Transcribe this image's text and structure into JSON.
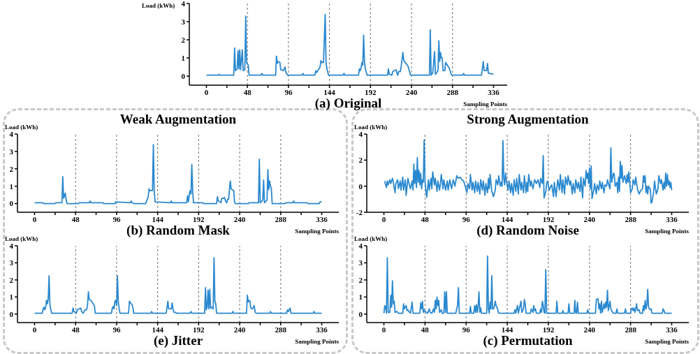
{
  "chart_data": [
    {
      "type": "line",
      "title": "(a) Original",
      "xlabel": "Sampling Points",
      "ylabel": "Load (kWh)",
      "xlim": [
        -20,
        352
      ],
      "ylim": [
        -0.5,
        4
      ],
      "xticks": [
        0,
        {
          "value": 24,
          "label": null
        },
        48,
        {
          "value": 72,
          "label": null
        },
        96,
        {
          "value": 120,
          "label": null
        },
        144,
        {
          "value": 168,
          "label": null
        },
        192,
        {
          "value": 216,
          "label": null
        },
        240,
        {
          "value": 264,
          "label": null
        },
        288,
        {
          "value": 312,
          "label": null
        },
        336
      ],
      "yticks": [
        0,
        1,
        2,
        3,
        4
      ],
      "ref_lines": [
        {
          "axis": "x",
          "value": 48,
          "color": "#707070",
          "line_style": "dashed"
        },
        {
          "axis": "x",
          "value": 96,
          "color": "#707070",
          "line_style": "dashed"
        },
        {
          "axis": "x",
          "value": 144,
          "color": "#707070",
          "line_style": "dashed"
        },
        {
          "axis": "x",
          "value": 192,
          "color": "#707070",
          "line_style": "dashed"
        },
        {
          "axis": "x",
          "value": 240,
          "color": "#707070",
          "line_style": "dashed"
        },
        {
          "axis": "x",
          "value": 288,
          "color": "#707070",
          "line_style": "dashed"
        }
      ],
      "series": [
        {
          "color": "#2a88cf",
          "x": [
            0,
            14,
            15,
            16,
            32,
            33,
            34,
            36,
            37,
            38,
            39,
            40,
            42,
            43,
            45,
            46,
            47,
            49,
            50,
            64,
            65,
            66,
            81,
            82,
            83,
            84,
            86,
            87,
            90,
            92,
            93,
            95,
            112,
            113,
            114,
            127,
            128,
            129,
            131,
            133,
            134,
            135,
            137,
            139,
            140,
            141,
            143,
            160,
            161,
            162,
            178,
            179,
            180,
            181,
            182,
            183,
            184,
            185,
            186,
            188,
            212,
            213,
            214,
            217,
            218,
            220,
            222,
            223,
            224,
            225,
            227,
            228,
            230,
            231,
            236,
            238,
            239,
            261,
            262,
            263,
            265,
            267,
            268,
            271,
            272,
            273,
            274,
            275,
            276,
            277,
            279,
            280,
            282,
            284,
            287,
            300,
            301,
            302,
            322,
            324,
            325,
            328,
            329,
            330,
            331,
            336
          ],
          "values": [
            0.05,
            0.05,
            0.1,
            0.05,
            0.05,
            1.55,
            0.3,
            0.4,
            1.4,
            0.4,
            1.45,
            0.35,
            1.45,
            0.3,
            0.35,
            3.3,
            0.75,
            0.6,
            0.05,
            0.05,
            0.15,
            0.05,
            0.05,
            1.1,
            0.7,
            0.8,
            0.75,
            0.35,
            0.3,
            0.5,
            0.2,
            0.05,
            0.05,
            0.15,
            0.05,
            0.05,
            0.3,
            0.2,
            0.35,
            0.5,
            0.85,
            0.75,
            0.75,
            3.4,
            0.75,
            0.4,
            0.05,
            0.05,
            0.15,
            0.05,
            0.05,
            0.4,
            0.3,
            0.45,
            0.75,
            0.6,
            2.25,
            0.8,
            0.4,
            0.05,
            0.05,
            0.4,
            0.1,
            0.05,
            0.25,
            0.3,
            0.35,
            0.15,
            0.05,
            0.25,
            0.25,
            0.55,
            1.3,
            0.85,
            0.55,
            0.2,
            0.05,
            0.05,
            2.55,
            0.05,
            0.2,
            1.35,
            0.1,
            0.3,
            1.95,
            0.8,
            1.3,
            1.0,
            1.0,
            0.3,
            0.3,
            0.75,
            0.6,
            0.45,
            0.05,
            0.05,
            0.15,
            0.05,
            0.05,
            0.8,
            0.3,
            0.3,
            0.7,
            0.15,
            0.15,
            0.1
          ]
        }
      ]
    },
    {
      "type": "line",
      "title": "(b) Random Mask",
      "xlabel": "Sampling Points",
      "ylabel": "Load (kWh)",
      "annotations": [
        "Weak Augmentation"
      ],
      "xlim": [
        -20,
        356
      ],
      "ylim": [
        -0.5,
        4
      ],
      "xticks": [
        0,
        {
          "value": 24,
          "label": null
        },
        48,
        {
          "value": 72,
          "label": null
        },
        96,
        {
          "value": 120,
          "label": null
        },
        144,
        {
          "value": 168,
          "label": null
        },
        192,
        {
          "value": 216,
          "label": null
        },
        240,
        {
          "value": 264,
          "label": null
        },
        288,
        {
          "value": 312,
          "label": null
        },
        336
      ],
      "yticks": [
        0,
        1,
        2,
        3,
        4
      ],
      "ref_lines": [
        {
          "axis": "x",
          "value": 48,
          "color": "#707070",
          "line_style": "dashed"
        },
        {
          "axis": "x",
          "value": 96,
          "color": "#707070",
          "line_style": "dashed"
        },
        {
          "axis": "x",
          "value": 144,
          "color": "#707070",
          "line_style": "dashed"
        },
        {
          "axis": "x",
          "value": 192,
          "color": "#707070",
          "line_style": "dashed"
        },
        {
          "axis": "x",
          "value": 240,
          "color": "#707070",
          "line_style": "dashed"
        },
        {
          "axis": "x",
          "value": 288,
          "color": "#707070",
          "line_style": "dashed"
        }
      ],
      "series": [
        {
          "color": "#2a88cf",
          "x": [
            0,
            10,
            11,
            24,
            25,
            32,
            33,
            34,
            36,
            37,
            38,
            48,
            51,
            52,
            64,
            65,
            66,
            80,
            81,
            94,
            95,
            112,
            113,
            114,
            116,
            130,
            133,
            134,
            135,
            138,
            139,
            140,
            141,
            159,
            160,
            161,
            178,
            179,
            180,
            181,
            182,
            183,
            184,
            185,
            186,
            197,
            198,
            213,
            214,
            215,
            217,
            218,
            219,
            221,
            222,
            224,
            225,
            226,
            227,
            229,
            230,
            233,
            234,
            235,
            250,
            251,
            262,
            263,
            264,
            267,
            268,
            269,
            272,
            273,
            274,
            275,
            276,
            277,
            278,
            293,
            294,
            302,
            303,
            304,
            319,
            320,
            333,
            334,
            336
          ],
          "values": [
            0.05,
            0.05,
            0,
            0,
            0.05,
            0.05,
            1.55,
            0.3,
            0.6,
            0.2,
            0,
            0,
            0,
            0.05,
            0.05,
            0.15,
            0.05,
            0.05,
            0,
            0,
            0.1,
            0.05,
            0.15,
            0.05,
            0,
            0,
            0.4,
            0.85,
            0.75,
            0.75,
            3.4,
            0.75,
            0.1,
            0.05,
            0.15,
            0.05,
            0.05,
            0.45,
            0.1,
            0.5,
            0.75,
            0.55,
            2.25,
            0.7,
            0.05,
            0.05,
            0,
            0,
            0.4,
            0.15,
            0.1,
            0.05,
            0.3,
            0.3,
            0.35,
            0.1,
            0.05,
            0.25,
            0.25,
            1.3,
            0.85,
            0.75,
            0.1,
            0,
            0,
            0.05,
            0.05,
            2.55,
            0.05,
            0.2,
            1.35,
            0.05,
            0.2,
            1.95,
            0.8,
            1.3,
            1.0,
            0.9,
            0,
            0,
            0.05,
            0.05,
            0.15,
            0.05,
            0.05,
            0,
            0,
            0.1,
            0.1
          ]
        }
      ]
    },
    {
      "type": "line",
      "title": "(d) Random Noise",
      "xlabel": "Sampling Points",
      "ylabel": "Load (kWh)",
      "annotations": [
        "Strong Augmentation"
      ],
      "xlim": [
        -20,
        356
      ],
      "ylim": [
        -2,
        4
      ],
      "xticks": [
        0,
        {
          "value": 24,
          "label": null
        },
        48,
        {
          "value": 72,
          "label": null
        },
        96,
        {
          "value": 120,
          "label": null
        },
        144,
        {
          "value": 168,
          "label": null
        },
        192,
        {
          "value": 216,
          "label": null
        },
        240,
        {
          "value": 264,
          "label": null
        },
        288,
        {
          "value": 312,
          "label": null
        },
        336
      ],
      "yticks": [
        -2,
        0,
        2,
        4
      ],
      "ref_lines": [
        {
          "axis": "x",
          "value": 48,
          "color": "#707070",
          "line_style": "dashed"
        },
        {
          "axis": "x",
          "value": 96,
          "color": "#707070",
          "line_style": "dashed"
        },
        {
          "axis": "x",
          "value": 144,
          "color": "#707070",
          "line_style": "dashed"
        },
        {
          "axis": "x",
          "value": 192,
          "color": "#707070",
          "line_style": "dashed"
        },
        {
          "axis": "x",
          "value": 240,
          "color": "#707070",
          "line_style": "dashed"
        },
        {
          "axis": "x",
          "value": 288,
          "color": "#707070",
          "line_style": "dashed"
        }
      ],
      "series": [
        {
          "color": "#2a88cf",
          "x": [
            1,
            2,
            3,
            4,
            5,
            7,
            8,
            10,
            11,
            13,
            14,
            16,
            17,
            19,
            20,
            22,
            23,
            25,
            26,
            28,
            29,
            31,
            33,
            34,
            35,
            36,
            37,
            38,
            39,
            40,
            41,
            42,
            43,
            44,
            45,
            46,
            47,
            48,
            49,
            50,
            52,
            53,
            55,
            56,
            57,
            59,
            60,
            62,
            63,
            65,
            66,
            67,
            69,
            70,
            72,
            74,
            75,
            77,
            79,
            81,
            83,
            85,
            87,
            89,
            91,
            93,
            95,
            97,
            98,
            100,
            101,
            103,
            104,
            106,
            107,
            109,
            110,
            112,
            113,
            115,
            116,
            118,
            119,
            121,
            122,
            123,
            124,
            126,
            128,
            130,
            131,
            133,
            134,
            136,
            137,
            138,
            139,
            140,
            141,
            142,
            143,
            145,
            146,
            148,
            149,
            151,
            152,
            154,
            155,
            157,
            158,
            160,
            161,
            163,
            164,
            166,
            167,
            168,
            169,
            171,
            172,
            174,
            176,
            178,
            180,
            182,
            183,
            185,
            186,
            187,
            189,
            190,
            191,
            193,
            195,
            196,
            198,
            199,
            201,
            203,
            205,
            206,
            208,
            209,
            211,
            212,
            214,
            215,
            217,
            218,
            220,
            221,
            223,
            224,
            226,
            227,
            229,
            230,
            232,
            233,
            235,
            236,
            237,
            238,
            239,
            240,
            241,
            242,
            243,
            245,
            246,
            248,
            249,
            251,
            252,
            254,
            255,
            257,
            258,
            260,
            261,
            263,
            264,
            265,
            266,
            268,
            269,
            270,
            272,
            273,
            274,
            275,
            276,
            277,
            278,
            279,
            281,
            283,
            284,
            285,
            286,
            287,
            288,
            290,
            291,
            293,
            294,
            296,
            298,
            300,
            302,
            303,
            304,
            305,
            306,
            307,
            308,
            309,
            311,
            312,
            313,
            315,
            316,
            318,
            320,
            321,
            323,
            324,
            326,
            327,
            328,
            329,
            330,
            331,
            332,
            333,
            334,
            335,
            336
          ],
          "values": [
            0.4,
            0.1,
            -0.1,
            0.4,
            0.1,
            0.5,
            0.2,
            0.6,
            0.3,
            -0.5,
            0.2,
            0.5,
            -0.2,
            0.4,
            -0.3,
            0.7,
            -0.3,
            0.5,
            -0.7,
            0.6,
            0.3,
            -0.2,
            0.4,
            -0.3,
            1.7,
            0.2,
            1.2,
            -0.1,
            2.2,
            0.3,
            1.2,
            0.1,
            1.0,
            -0.2,
            0.5,
            0.3,
            3.55,
            0.4,
            -0.3,
            -0.85,
            0.5,
            -0.3,
            0.6,
            -0.2,
            1.1,
            0.1,
            0.6,
            -0.4,
            0.4,
            -0.3,
            0.2,
            0.9,
            -0.2,
            0.5,
            -0.3,
            0.4,
            -0.3,
            0.5,
            -0.2,
            0.5,
            0.0,
            0.8,
            0.6,
            0.7,
            0.5,
            0.4,
            0.0,
            -0.5,
            0.2,
            -0.2,
            0.9,
            -0.3,
            0.3,
            -0.5,
            0.4,
            -0.4,
            0.3,
            -0.6,
            0.5,
            -0.3,
            0.4,
            -0.7,
            0.2,
            -0.5,
            0.6,
            -0.2,
            0.9,
            -0.4,
            -0.8,
            -0.3,
            0.5,
            0.1,
            0.8,
            0.0,
            0.3,
            0.0,
            3.5,
            0.6,
            0.1,
            1.0,
            0.4,
            -0.3,
            0.4,
            -0.5,
            0.2,
            -0.7,
            0.5,
            -0.4,
            0.6,
            -0.6,
            0.9,
            -0.3,
            0.3,
            -0.5,
            0.8,
            -0.5,
            0.3,
            -0.4,
            0.9,
            0.0,
            0.4,
            -0.2,
            0.5,
            0.2,
            0.5,
            -0.1,
            0.6,
            0.2,
            2.35,
            -0.9,
            -0.4,
            0.2,
            0.4,
            -0.3,
            0.0,
            0.1,
            -0.8,
            0.3,
            -0.8,
            0.5,
            -0.3,
            0.9,
            -0.5,
            0.5,
            -0.6,
            0.7,
            0.1,
            0.8,
            0.1,
            0.4,
            -0.6,
            0.2,
            -0.5,
            0.5,
            -0.2,
            0.3,
            -0.4,
            0.7,
            -0.9,
            0.6,
            0.0,
            1.2,
            0.6,
            1.0,
            0.2,
            1.4,
            -0.2,
            1.55,
            -0.95,
            -0.3,
            0.2,
            -0.6,
            0.1,
            -0.3,
            0.4,
            -0.2,
            0.3,
            -0.5,
            0.1,
            0.0,
            0.5,
            0.0,
            -0.2,
            2.95,
            0.3,
            1.0,
            0.9,
            0.0,
            0.3,
            -0.5,
            0.7,
            -0.4,
            1.9,
            0.6,
            1.6,
            0.3,
            0.8,
            0.2,
            0.9,
            0.3,
            1.1,
            0.3,
            -0.5,
            -0.2,
            0.5,
            0.1,
            0.7,
            -0.2,
            -0.6,
            -0.3,
            -0.2,
            0.8,
            0.3,
            0.8,
            -0.5,
            0.0,
            -0.6,
            0.0,
            -0.2,
            -1.3,
            -1.2,
            -0.4,
            0.4,
            -0.6,
            -0.2,
            0.8,
            0.2,
            0.5,
            -0.3,
            0.3,
            -0.2,
            1.0,
            0.0,
            0.9,
            0.1,
            0.4,
            -0.1,
            0.3,
            -0.3
          ]
        }
      ]
    },
    {
      "type": "line",
      "title": "(e) Jitter",
      "xlabel": "Sampling Points",
      "ylabel": "Load (kWh)",
      "xlim": [
        -20,
        356
      ],
      "ylim": [
        -0.5,
        4
      ],
      "xticks": [
        0,
        {
          "value": 24,
          "label": null
        },
        48,
        {
          "value": 72,
          "label": null
        },
        96,
        {
          "value": 120,
          "label": null
        },
        144,
        {
          "value": 168,
          "label": null
        },
        192,
        {
          "value": 216,
          "label": null
        },
        240,
        {
          "value": 264,
          "label": null
        },
        288,
        {
          "value": 312,
          "label": null
        },
        336
      ],
      "yticks": [
        0,
        1,
        2,
        3,
        4
      ],
      "ref_lines": [
        {
          "axis": "x",
          "value": 48,
          "color": "#707070",
          "line_style": "dashed"
        },
        {
          "axis": "x",
          "value": 96,
          "color": "#707070",
          "line_style": "dashed"
        },
        {
          "axis": "x",
          "value": 144,
          "color": "#707070",
          "line_style": "dashed"
        },
        {
          "axis": "x",
          "value": 192,
          "color": "#707070",
          "line_style": "dashed"
        },
        {
          "axis": "x",
          "value": 240,
          "color": "#707070",
          "line_style": "dashed"
        },
        {
          "axis": "x",
          "value": 288,
          "color": "#707070",
          "line_style": "dashed"
        }
      ],
      "series": [
        {
          "color": "#2a88cf",
          "x": [
            0,
            9,
            10,
            11,
            12,
            13,
            14,
            15,
            16,
            17,
            18,
            20,
            44,
            45,
            46,
            48,
            49,
            50,
            52,
            54,
            55,
            57,
            59,
            61,
            62,
            63,
            64,
            66,
            68,
            70,
            71,
            90,
            91,
            92,
            93,
            94,
            95,
            96,
            97,
            98,
            99,
            100,
            110,
            111,
            113,
            114,
            115,
            116,
            136,
            137,
            138,
            154,
            155,
            156,
            157,
            160,
            161,
            162,
            163,
            165,
            166,
            182,
            183,
            184,
            199,
            200,
            201,
            202,
            203,
            204,
            205,
            206,
            207,
            209,
            210,
            211,
            212,
            213,
            231,
            232,
            233,
            248,
            249,
            250,
            251,
            252,
            253,
            255,
            257,
            258,
            259,
            275,
            276,
            277,
            295,
            296,
            297,
            299,
            300,
            326,
            327,
            328,
            336
          ],
          "values": [
            0.05,
            0.05,
            0.3,
            0.4,
            0.25,
            0.4,
            0.8,
            0.6,
            0.9,
            2.25,
            0.5,
            0.05,
            0.05,
            0.35,
            0.15,
            0.1,
            0.05,
            0.25,
            0.3,
            0.35,
            0.15,
            0.05,
            0.25,
            0.25,
            0.55,
            1.3,
            0.85,
            0.8,
            0.65,
            0.5,
            0.05,
            0.05,
            0.35,
            0.45,
            0.3,
            0.75,
            0.8,
            0.5,
            2.25,
            0.7,
            0.3,
            0.05,
            0.05,
            0.75,
            0.6,
            0.55,
            0.4,
            0.05,
            0.05,
            0.15,
            0.05,
            0.05,
            0.4,
            0.75,
            0.3,
            0.3,
            0.65,
            0.3,
            0.1,
            0.1,
            0.05,
            0.05,
            0.15,
            0.05,
            0.05,
            1.55,
            0.25,
            0.4,
            1.4,
            0.3,
            1.45,
            0.35,
            0.4,
            0.3,
            3.3,
            0.75,
            0.6,
            0.05,
            0.05,
            0.15,
            0.05,
            0.05,
            1.1,
            0.7,
            0.8,
            0.75,
            0.35,
            0.3,
            0.5,
            0.15,
            0.05,
            0.05,
            0.15,
            0.05,
            0.05,
            0.25,
            0.15,
            0.35,
            0.05,
            0.05,
            0.15,
            0.05,
            0.05
          ]
        }
      ]
    },
    {
      "type": "line",
      "title": "(c) Permutation",
      "xlabel": "Sampling Points",
      "ylabel": "Load (kWh)",
      "xlim": [
        -20,
        356
      ],
      "ylim": [
        -0.5,
        4
      ],
      "xticks": [
        0,
        {
          "value": 24,
          "label": null
        },
        48,
        {
          "value": 72,
          "label": null
        },
        96,
        {
          "value": 120,
          "label": null
        },
        144,
        {
          "value": 168,
          "label": null
        },
        192,
        {
          "value": 216,
          "label": null
        },
        240,
        {
          "value": 264,
          "label": null
        },
        288,
        {
          "value": 312,
          "label": null
        },
        336
      ],
      "yticks": [
        0,
        1,
        2,
        3,
        4
      ],
      "ref_lines": [
        {
          "axis": "x",
          "value": 48,
          "color": "#707070",
          "line_style": "dashed"
        },
        {
          "axis": "x",
          "value": 96,
          "color": "#707070",
          "line_style": "dashed"
        },
        {
          "axis": "x",
          "value": 144,
          "color": "#707070",
          "line_style": "dashed"
        },
        {
          "axis": "x",
          "value": 192,
          "color": "#707070",
          "line_style": "dashed"
        },
        {
          "axis": "x",
          "value": 240,
          "color": "#707070",
          "line_style": "dashed"
        },
        {
          "axis": "x",
          "value": 288,
          "color": "#707070",
          "line_style": "dashed"
        }
      ],
      "series": [
        {
          "color": "#2a88cf",
          "x": [
            0,
            1,
            2,
            3,
            4,
            5,
            7,
            8,
            9,
            10,
            11,
            12,
            13,
            15,
            17,
            22,
            23,
            24,
            26,
            27,
            28,
            30,
            31,
            33,
            34,
            42,
            43,
            44,
            45,
            46,
            47,
            48,
            50,
            51,
            53,
            54,
            56,
            58,
            59,
            60,
            61,
            62,
            63,
            64,
            65,
            67,
            68,
            70,
            71,
            72,
            73,
            74,
            84,
            85,
            86,
            87,
            88,
            100,
            101,
            102,
            105,
            106,
            107,
            108,
            109,
            110,
            111,
            112,
            113,
            114,
            120,
            121,
            122,
            123,
            124,
            125,
            126,
            127,
            128,
            129,
            130,
            131,
            132,
            134,
            152,
            153,
            154,
            156,
            157,
            160,
            161,
            163,
            164,
            165,
            166,
            171,
            172,
            174,
            175,
            176,
            177,
            178,
            182,
            183,
            184,
            185,
            186,
            187,
            188,
            189,
            190,
            201,
            202,
            203,
            208,
            209,
            210,
            215,
            216,
            217,
            222,
            223,
            224,
            225,
            226,
            227,
            237,
            238,
            239,
            247,
            248,
            250,
            251,
            252,
            253,
            254,
            255,
            257,
            258,
            259,
            260,
            261,
            262,
            264,
            265,
            267,
            268,
            271,
            272,
            273,
            281,
            282,
            283,
            288,
            289,
            290,
            291,
            292,
            293,
            294,
            295,
            296,
            298,
            299,
            302,
            303,
            304,
            305,
            306,
            307,
            308,
            309,
            310,
            311,
            312,
            313,
            325,
            326,
            327,
            328,
            336
          ],
          "values": [
            0.05,
            0.5,
            0.4,
            0.05,
            3.3,
            0.1,
            0.1,
            1.1,
            0.4,
            1.95,
            0.6,
            0.75,
            0.1,
            0.15,
            0.05,
            0.05,
            0.6,
            0.3,
            0.5,
            0.2,
            0.25,
            0.1,
            0.05,
            0.7,
            0.05,
            0.05,
            0.65,
            0.3,
            0.75,
            0.1,
            0.25,
            0.15,
            0.1,
            0.05,
            0.3,
            0.1,
            0.05,
            0.3,
            0.1,
            0.8,
            0.3,
            1.0,
            0.5,
            0.8,
            0.1,
            0.25,
            0.05,
            0.05,
            1.3,
            0.1,
            1.3,
            0.05,
            0.05,
            0.3,
            0.5,
            1.55,
            0.05,
            0.05,
            0.45,
            0.05,
            0.05,
            0.5,
            0.1,
            0.55,
            0.1,
            0.45,
            1.3,
            0.1,
            0.35,
            0.05,
            0.05,
            3.4,
            0.3,
            0.05,
            0.7,
            0.3,
            2.25,
            0.3,
            0.3,
            0.45,
            0.75,
            0.5,
            0.4,
            0.05,
            0.05,
            0.25,
            0.05,
            0.5,
            0.05,
            0.75,
            0.1,
            0.3,
            0.85,
            0.6,
            0.05,
            0.05,
            0.3,
            0.1,
            0.5,
            0.2,
            0.3,
            0.05,
            0.05,
            0.3,
            0.1,
            0.75,
            0.5,
            0.1,
            0.05,
            2.6,
            0.05,
            0.05,
            0.75,
            0.05,
            0.05,
            0.2,
            0.05,
            0.05,
            0.6,
            0.05,
            0.05,
            0.8,
            0.05,
            0.05,
            0.7,
            0.05,
            0.05,
            0.25,
            0.05,
            0.05,
            0.85,
            0.9,
            0.3,
            0.6,
            0.05,
            0.75,
            0.1,
            0.6,
            0.3,
            0.7,
            0.4,
            1.4,
            0.2,
            0.75,
            0.3,
            0.1,
            0.05,
            0.05,
            0.3,
            0.05,
            0.05,
            0.3,
            0.05,
            0.05,
            0.3,
            0.35,
            0.2,
            0.35,
            0.1,
            0.3,
            0.6,
            0.2,
            0.25,
            0.05,
            0.05,
            0.5,
            0.2,
            0.8,
            0.3,
            0.55,
            1.45,
            0.4,
            0.3,
            0.25,
            0.3,
            0.05,
            0.05,
            0.3,
            0.2,
            0.05,
            0.05
          ]
        }
      ]
    }
  ]
}
